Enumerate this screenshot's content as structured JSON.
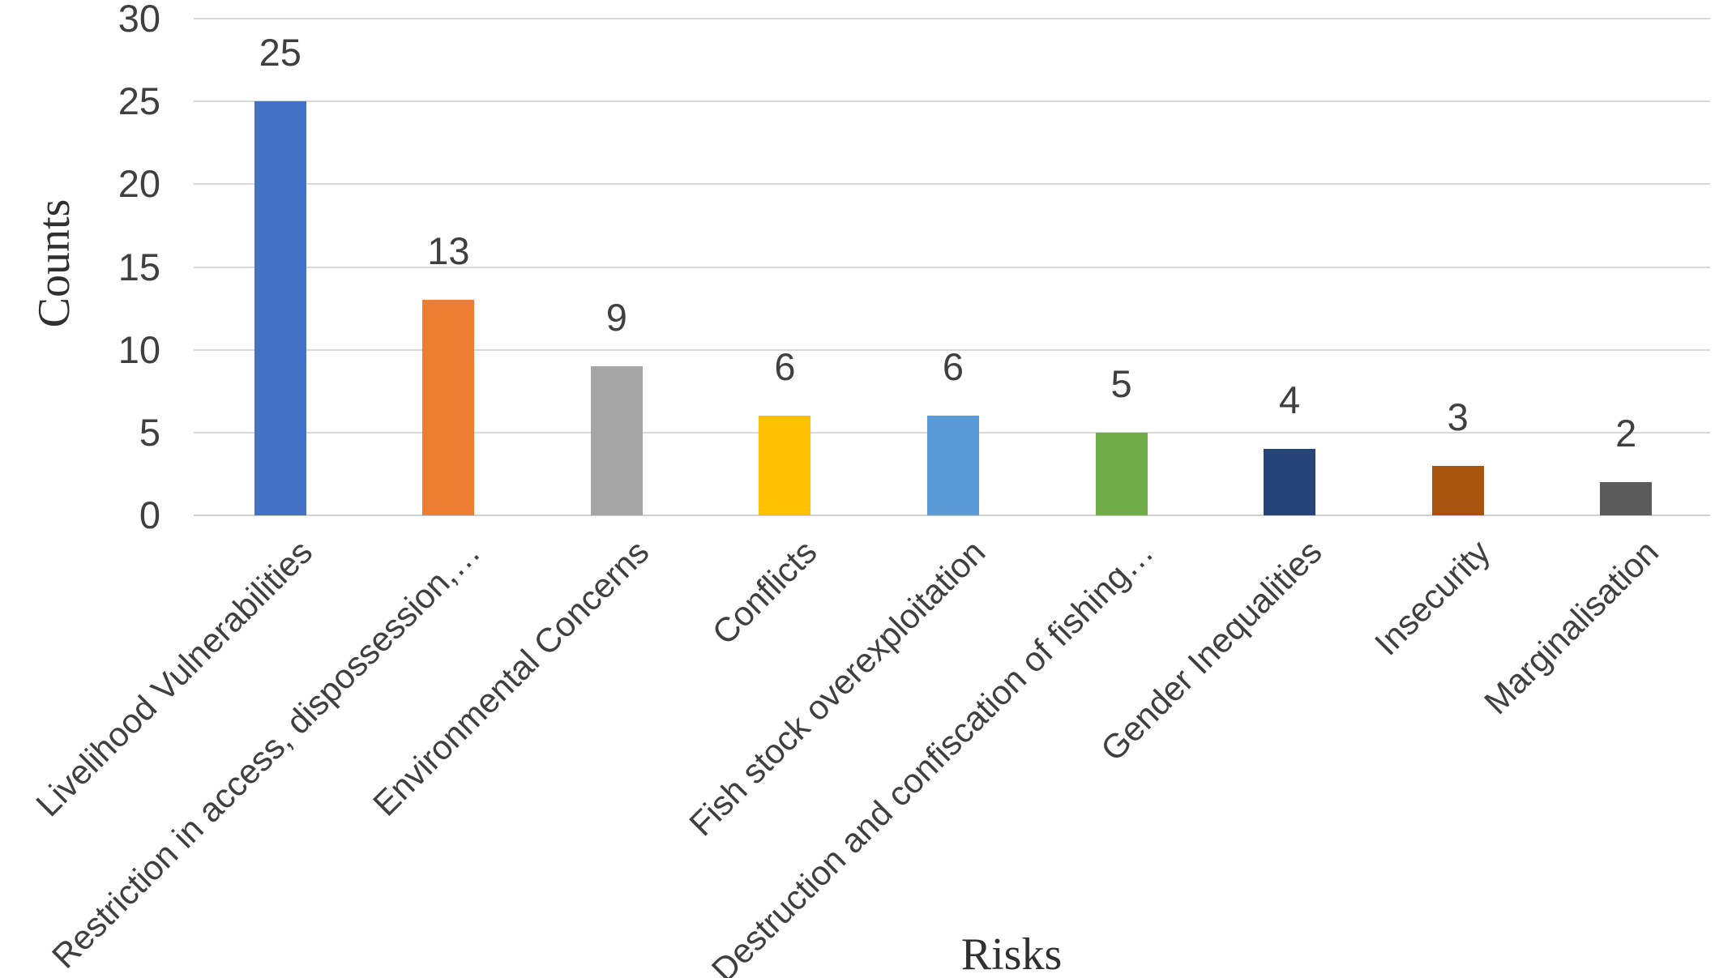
{
  "chart_data": {
    "type": "bar",
    "title": "",
    "xlabel": "Risks",
    "ylabel": "Counts",
    "categories": [
      "Livelihood Vulnerabilities",
      "Restriction in access, dispossession,…",
      "Environmental Concerns",
      "Conflicts",
      "Fish stock overexploitation",
      "Destruction and confiscation of fishing…",
      "Gender Inequalities",
      "Insecurity",
      "Marginalisation"
    ],
    "values": [
      25,
      13,
      9,
      6,
      6,
      5,
      4,
      3,
      2
    ],
    "value_labels": [
      "25",
      "13",
      "9",
      "6",
      "6",
      "5",
      "4",
      "3",
      "2"
    ],
    "bar_colors": [
      "#4472C4",
      "#ED7D31",
      "#A5A5A5",
      "#FFC000",
      "#5B9BD5",
      "#70AD47",
      "#264478",
      "#A8540E",
      "#5B5B5B"
    ],
    "ylim": [
      0,
      30
    ],
    "yticks": [
      0,
      5,
      10,
      15,
      20,
      25,
      30
    ],
    "grid": "horizontal",
    "legend_position": "none"
  },
  "colors": {
    "background": "#FFFFFF",
    "gridline": "#D9D9D9",
    "axis_line": "#D0CECE",
    "tick_text": "#3F3F3F",
    "category_text": "#3F3F3F",
    "axis_title_text": "#303030"
  }
}
